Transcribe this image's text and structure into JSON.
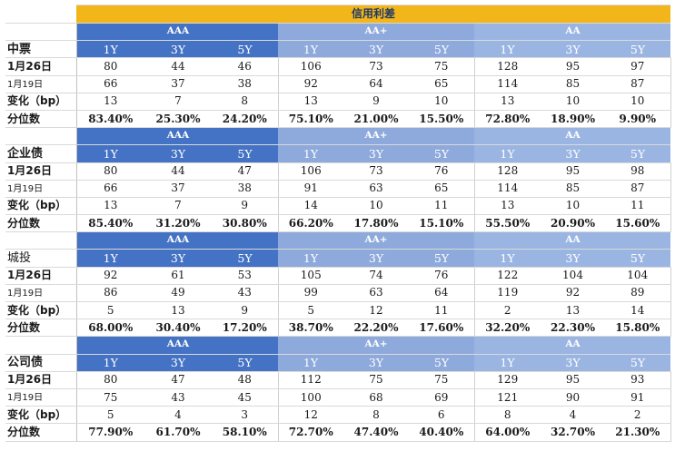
{
  "title": "信用利差",
  "ratings": [
    "AAA",
    "AA+",
    "AA"
  ],
  "tenors": [
    "1Y",
    "3Y",
    "5Y"
  ],
  "row_labels": {
    "date_current": "1月26日",
    "date_previous": "1月19日",
    "change": "变化（bp）",
    "percentile": "分位数"
  },
  "sections": [
    {
      "name": "中票",
      "current": [
        "80",
        "44",
        "46",
        "106",
        "73",
        "75",
        "128",
        "95",
        "97"
      ],
      "previous": [
        "66",
        "37",
        "38",
        "92",
        "64",
        "65",
        "114",
        "85",
        "87"
      ],
      "change": [
        "13",
        "7",
        "8",
        "13",
        "9",
        "10",
        "13",
        "10",
        "10"
      ],
      "percentile": [
        "83.40%",
        "25.30%",
        "24.20%",
        "75.10%",
        "21.00%",
        "15.50%",
        "72.80%",
        "18.90%",
        "9.90%"
      ]
    },
    {
      "name": "企业债",
      "current": [
        "80",
        "44",
        "47",
        "106",
        "73",
        "76",
        "128",
        "95",
        "98"
      ],
      "previous": [
        "66",
        "37",
        "38",
        "91",
        "63",
        "65",
        "114",
        "85",
        "87"
      ],
      "change": [
        "13",
        "7",
        "9",
        "14",
        "10",
        "11",
        "13",
        "10",
        "11"
      ],
      "percentile": [
        "85.40%",
        "31.20%",
        "30.80%",
        "66.20%",
        "17.80%",
        "15.10%",
        "55.50%",
        "20.90%",
        "15.60%"
      ]
    },
    {
      "name": "城投",
      "current": [
        "92",
        "61",
        "53",
        "105",
        "74",
        "76",
        "122",
        "104",
        "104"
      ],
      "previous": [
        "86",
        "49",
        "43",
        "99",
        "63",
        "64",
        "119",
        "92",
        "89"
      ],
      "change": [
        "5",
        "13",
        "9",
        "5",
        "12",
        "11",
        "2",
        "13",
        "14"
      ],
      "percentile": [
        "68.00%",
        "30.40%",
        "17.20%",
        "38.70%",
        "22.20%",
        "17.60%",
        "32.20%",
        "22.30%",
        "15.80%"
      ]
    },
    {
      "name": "公司债",
      "current": [
        "80",
        "47",
        "48",
        "112",
        "75",
        "75",
        "129",
        "95",
        "93"
      ],
      "previous": [
        "75",
        "43",
        "45",
        "100",
        "68",
        "69",
        "121",
        "90",
        "91"
      ],
      "change": [
        "5",
        "4",
        "3",
        "12",
        "8",
        "6",
        "8",
        "4",
        "2"
      ],
      "percentile": [
        "77.90%",
        "61.70%",
        "58.10%",
        "72.70%",
        "47.40%",
        "40.40%",
        "64.00%",
        "32.70%",
        "21.30%"
      ]
    }
  ]
}
